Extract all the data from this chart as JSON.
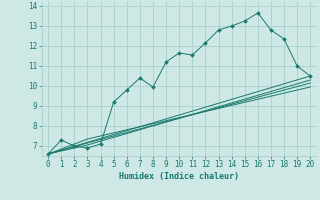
{
  "xlabel": "Humidex (Indice chaleur)",
  "xlim": [
    -0.5,
    20.5
  ],
  "ylim": [
    6.5,
    14.2
  ],
  "xticks": [
    0,
    1,
    2,
    3,
    4,
    5,
    6,
    7,
    8,
    9,
    10,
    11,
    12,
    13,
    14,
    15,
    16,
    17,
    18,
    19,
    20
  ],
  "yticks": [
    7,
    8,
    9,
    10,
    11,
    12,
    13,
    14
  ],
  "bg_color": "#cde8e5",
  "grid_color": "#aacfcc",
  "line_color": "#1a7a6e",
  "line1_x": [
    0,
    1,
    2,
    3,
    4,
    5,
    6,
    7,
    8,
    9,
    10,
    11,
    12,
    13,
    14,
    15,
    16,
    17,
    18,
    19,
    20
  ],
  "line1_y": [
    6.6,
    7.3,
    7.0,
    6.9,
    7.1,
    9.2,
    9.8,
    10.4,
    9.95,
    11.2,
    11.65,
    11.55,
    12.15,
    12.8,
    13.0,
    13.25,
    13.65,
    12.8,
    12.35,
    11.0,
    10.5
  ],
  "line2_x": [
    0,
    20
  ],
  "line2_y": [
    6.6,
    10.5
  ],
  "line3_x": [
    0,
    3,
    20
  ],
  "line3_y": [
    6.6,
    7.05,
    10.3
  ],
  "line4_x": [
    0,
    3,
    20
  ],
  "line4_y": [
    6.6,
    7.15,
    10.15
  ],
  "line5_x": [
    0,
    3,
    20
  ],
  "line5_y": [
    6.6,
    7.35,
    9.95
  ]
}
